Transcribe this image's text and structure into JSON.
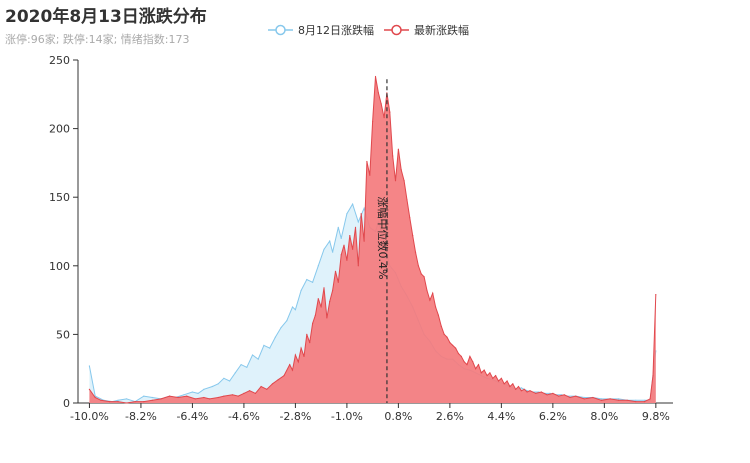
{
  "title": "2020年8月13日涨跌分布",
  "subtitle": "涨停:96家; 跌停:14家; 情绪指数:173",
  "colors": {
    "prev_line": "#87c8ec",
    "prev_fill": "#dff2fb",
    "latest_line": "#e0484d",
    "latest_fill": "#f47b7d"
  },
  "chart_data": {
    "type": "area",
    "ylim": [
      0,
      250
    ],
    "xlim": [
      -10.4,
      10.4
    ],
    "y_ticks": [
      0,
      50,
      100,
      150,
      200,
      250
    ],
    "x_ticks": [
      "-10.0%",
      "-8.2%",
      "-6.4%",
      "-4.6%",
      "-2.8%",
      "-1.0%",
      "0.8%",
      "2.6%",
      "4.4%",
      "6.2%",
      "8.0%",
      "9.8%"
    ],
    "x_tick_values": [
      -10.0,
      -8.2,
      -6.4,
      -4.6,
      -2.8,
      -1.0,
      0.8,
      2.6,
      4.4,
      6.2,
      8.0,
      9.8
    ],
    "median_label": "涨幅中位数0.4%",
    "median_x": 0.4,
    "series": [
      {
        "name": "8月12日涨跌幅",
        "points": [
          [
            -10.0,
            27
          ],
          [
            -9.8,
            5
          ],
          [
            -9.5,
            2
          ],
          [
            -9.2,
            1
          ],
          [
            -9.0,
            2
          ],
          [
            -8.7,
            3
          ],
          [
            -8.4,
            1
          ],
          [
            -8.1,
            5
          ],
          [
            -7.8,
            4
          ],
          [
            -7.5,
            3
          ],
          [
            -7.2,
            5
          ],
          [
            -7.0,
            4
          ],
          [
            -6.7,
            6
          ],
          [
            -6.4,
            8
          ],
          [
            -6.2,
            7
          ],
          [
            -6.0,
            10
          ],
          [
            -5.7,
            12
          ],
          [
            -5.5,
            14
          ],
          [
            -5.3,
            18
          ],
          [
            -5.1,
            16
          ],
          [
            -4.9,
            22
          ],
          [
            -4.7,
            28
          ],
          [
            -4.5,
            26
          ],
          [
            -4.3,
            35
          ],
          [
            -4.1,
            32
          ],
          [
            -3.9,
            42
          ],
          [
            -3.7,
            40
          ],
          [
            -3.5,
            48
          ],
          [
            -3.3,
            55
          ],
          [
            -3.1,
            60
          ],
          [
            -2.9,
            70
          ],
          [
            -2.8,
            68
          ],
          [
            -2.6,
            82
          ],
          [
            -2.4,
            90
          ],
          [
            -2.2,
            88
          ],
          [
            -2.0,
            100
          ],
          [
            -1.8,
            112
          ],
          [
            -1.6,
            118
          ],
          [
            -1.5,
            110
          ],
          [
            -1.3,
            128
          ],
          [
            -1.2,
            120
          ],
          [
            -1.0,
            138
          ],
          [
            -0.8,
            145
          ],
          [
            -0.6,
            132
          ],
          [
            -0.4,
            142
          ],
          [
            -0.2,
            128
          ],
          [
            0.0,
            125
          ],
          [
            0.1,
            132
          ],
          [
            0.3,
            118
          ],
          [
            0.5,
            100
          ],
          [
            0.7,
            95
          ],
          [
            0.9,
            85
          ],
          [
            1.1,
            78
          ],
          [
            1.3,
            70
          ],
          [
            1.5,
            60
          ],
          [
            1.7,
            50
          ],
          [
            1.9,
            45
          ],
          [
            2.1,
            38
          ],
          [
            2.3,
            34
          ],
          [
            2.5,
            32
          ],
          [
            2.7,
            32
          ],
          [
            2.9,
            28
          ],
          [
            3.1,
            25
          ],
          [
            3.3,
            24
          ],
          [
            3.5,
            22
          ],
          [
            3.7,
            20
          ],
          [
            3.9,
            18
          ],
          [
            4.1,
            17
          ],
          [
            4.3,
            15
          ],
          [
            4.5,
            14
          ],
          [
            4.7,
            12
          ],
          [
            4.9,
            10
          ],
          [
            5.1,
            11
          ],
          [
            5.3,
            9
          ],
          [
            5.5,
            8
          ],
          [
            5.7,
            8
          ],
          [
            5.9,
            7
          ],
          [
            6.1,
            7
          ],
          [
            6.3,
            6
          ],
          [
            6.5,
            6
          ],
          [
            6.7,
            5
          ],
          [
            7.0,
            5
          ],
          [
            7.3,
            4
          ],
          [
            7.6,
            4
          ],
          [
            7.9,
            3
          ],
          [
            8.2,
            3
          ],
          [
            8.5,
            3
          ],
          [
            8.8,
            2
          ],
          [
            9.1,
            2
          ],
          [
            9.4,
            2
          ],
          [
            9.6,
            2
          ],
          [
            9.8,
            38
          ]
        ]
      },
      {
        "name": "最新涨跌幅",
        "points": [
          [
            -10.0,
            10
          ],
          [
            -9.8,
            4
          ],
          [
            -9.6,
            2
          ],
          [
            -9.3,
            1
          ],
          [
            -9.0,
            1
          ],
          [
            -8.7,
            0
          ],
          [
            -8.4,
            1
          ],
          [
            -8.1,
            1
          ],
          [
            -7.8,
            2
          ],
          [
            -7.5,
            3
          ],
          [
            -7.2,
            5
          ],
          [
            -6.9,
            4
          ],
          [
            -6.6,
            5
          ],
          [
            -6.3,
            3
          ],
          [
            -6.0,
            4
          ],
          [
            -5.8,
            3
          ],
          [
            -5.5,
            4
          ],
          [
            -5.3,
            5
          ],
          [
            -5.0,
            6
          ],
          [
            -4.8,
            5
          ],
          [
            -4.6,
            7
          ],
          [
            -4.4,
            9
          ],
          [
            -4.2,
            7
          ],
          [
            -4.0,
            12
          ],
          [
            -3.8,
            10
          ],
          [
            -3.6,
            14
          ],
          [
            -3.4,
            17
          ],
          [
            -3.2,
            20
          ],
          [
            -3.0,
            28
          ],
          [
            -2.9,
            24
          ],
          [
            -2.8,
            35
          ],
          [
            -2.7,
            30
          ],
          [
            -2.6,
            40
          ],
          [
            -2.5,
            34
          ],
          [
            -2.4,
            50
          ],
          [
            -2.3,
            44
          ],
          [
            -2.2,
            58
          ],
          [
            -2.1,
            64
          ],
          [
            -2.0,
            76
          ],
          [
            -1.9,
            70
          ],
          [
            -1.8,
            84
          ],
          [
            -1.7,
            62
          ],
          [
            -1.6,
            74
          ],
          [
            -1.5,
            82
          ],
          [
            -1.4,
            96
          ],
          [
            -1.3,
            88
          ],
          [
            -1.2,
            108
          ],
          [
            -1.1,
            115
          ],
          [
            -1.0,
            104
          ],
          [
            -0.9,
            122
          ],
          [
            -0.8,
            112
          ],
          [
            -0.7,
            128
          ],
          [
            -0.6,
            100
          ],
          [
            -0.5,
            138
          ],
          [
            -0.4,
            118
          ],
          [
            -0.3,
            176
          ],
          [
            -0.2,
            166
          ],
          [
            -0.1,
            205
          ],
          [
            0.0,
            238
          ],
          [
            0.1,
            226
          ],
          [
            0.2,
            218
          ],
          [
            0.3,
            208
          ],
          [
            0.4,
            226
          ],
          [
            0.5,
            212
          ],
          [
            0.6,
            180
          ],
          [
            0.7,
            162
          ],
          [
            0.8,
            185
          ],
          [
            0.9,
            170
          ],
          [
            1.0,
            162
          ],
          [
            1.1,
            148
          ],
          [
            1.2,
            135
          ],
          [
            1.3,
            122
          ],
          [
            1.4,
            110
          ],
          [
            1.5,
            100
          ],
          [
            1.6,
            94
          ],
          [
            1.7,
            92
          ],
          [
            1.8,
            82
          ],
          [
            1.9,
            75
          ],
          [
            2.0,
            80
          ],
          [
            2.1,
            70
          ],
          [
            2.2,
            64
          ],
          [
            2.3,
            56
          ],
          [
            2.4,
            50
          ],
          [
            2.5,
            48
          ],
          [
            2.6,
            44
          ],
          [
            2.7,
            42
          ],
          [
            2.8,
            40
          ],
          [
            2.9,
            36
          ],
          [
            3.0,
            34
          ],
          [
            3.1,
            30
          ],
          [
            3.2,
            28
          ],
          [
            3.3,
            34
          ],
          [
            3.4,
            30
          ],
          [
            3.5,
            25
          ],
          [
            3.6,
            28
          ],
          [
            3.7,
            22
          ],
          [
            3.8,
            24
          ],
          [
            3.9,
            20
          ],
          [
            4.0,
            22
          ],
          [
            4.1,
            18
          ],
          [
            4.2,
            20
          ],
          [
            4.3,
            16
          ],
          [
            4.4,
            18
          ],
          [
            4.5,
            14
          ],
          [
            4.6,
            16
          ],
          [
            4.7,
            12
          ],
          [
            4.8,
            14
          ],
          [
            4.9,
            10
          ],
          [
            5.0,
            12
          ],
          [
            5.1,
            9
          ],
          [
            5.2,
            10
          ],
          [
            5.3,
            8
          ],
          [
            5.4,
            9
          ],
          [
            5.6,
            7
          ],
          [
            5.8,
            8
          ],
          [
            6.0,
            6
          ],
          [
            6.2,
            7
          ],
          [
            6.4,
            5
          ],
          [
            6.6,
            6
          ],
          [
            6.8,
            4
          ],
          [
            7.0,
            5
          ],
          [
            7.3,
            3
          ],
          [
            7.6,
            4
          ],
          [
            7.9,
            2
          ],
          [
            8.2,
            3
          ],
          [
            8.5,
            2
          ],
          [
            8.8,
            2
          ],
          [
            9.1,
            1
          ],
          [
            9.4,
            1
          ],
          [
            9.6,
            3
          ],
          [
            9.7,
            20
          ],
          [
            9.8,
            79
          ]
        ]
      }
    ]
  }
}
